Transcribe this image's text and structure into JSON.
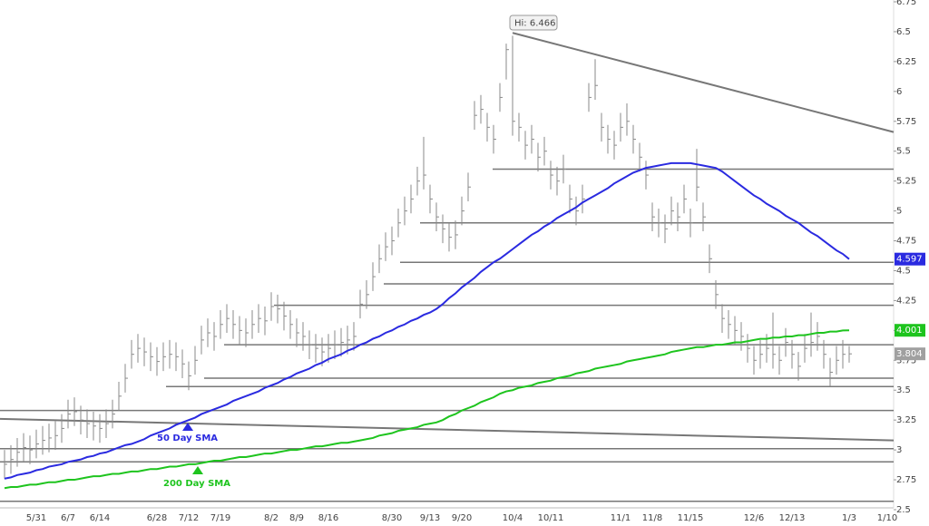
{
  "chart_data": {
    "type": "ohlc",
    "categories": [
      null,
      null,
      null,
      null,
      null,
      "5/31",
      null,
      null,
      null,
      null,
      "6/7",
      null,
      null,
      null,
      null,
      "6/14",
      null,
      null,
      null,
      null,
      null,
      null,
      null,
      null,
      "6/28",
      null,
      null,
      null,
      null,
      "7/12",
      null,
      null,
      null,
      null,
      "7/19",
      null,
      null,
      null,
      null,
      null,
      null,
      null,
      "8/2",
      null,
      null,
      null,
      "8/9",
      null,
      null,
      null,
      null,
      "8/16",
      null,
      null,
      null,
      null,
      null,
      null,
      null,
      null,
      null,
      "8/30",
      null,
      null,
      null,
      null,
      null,
      "9/13",
      null,
      null,
      null,
      null,
      "9/20",
      null,
      null,
      null,
      null,
      null,
      null,
      null,
      "10/4",
      null,
      null,
      null,
      null,
      null,
      "10/11",
      null,
      null,
      null,
      null,
      null,
      null,
      null,
      null,
      null,
      null,
      "11/1",
      null,
      null,
      null,
      null,
      "11/8",
      null,
      null,
      null,
      null,
      null,
      "11/15",
      null,
      null,
      null,
      null,
      null,
      null,
      null,
      null,
      null,
      "12/6",
      null,
      null,
      null,
      null,
      null,
      "12/13",
      null,
      null,
      null,
      null,
      null,
      null,
      null,
      null,
      "1/3",
      null,
      null,
      null,
      null,
      null,
      "1/10"
    ],
    "bars": {
      "color": "#8a8a8a",
      "high": [
        3.0,
        3.04,
        3.1,
        3.14,
        3.12,
        3.17,
        3.2,
        3.22,
        3.24,
        3.3,
        3.42,
        3.44,
        3.37,
        3.34,
        3.32,
        3.3,
        3.34,
        3.42,
        3.57,
        3.72,
        3.92,
        3.97,
        3.94,
        3.9,
        3.86,
        3.9,
        3.92,
        3.9,
        3.84,
        3.74,
        3.87,
        4.04,
        4.1,
        4.07,
        4.17,
        4.22,
        4.17,
        4.12,
        4.1,
        4.17,
        4.22,
        4.2,
        4.32,
        4.3,
        4.24,
        4.17,
        4.1,
        4.07,
        4.0,
        3.97,
        3.94,
        3.97,
        4.0,
        4.02,
        4.04,
        4.07,
        4.34,
        4.42,
        4.57,
        4.72,
        4.82,
        4.87,
        5.02,
        5.12,
        5.22,
        5.37,
        5.62,
        5.22,
        5.07,
        4.97,
        4.9,
        4.92,
        5.12,
        5.32,
        5.92,
        5.97,
        5.82,
        5.72,
        6.07,
        6.4,
        6.466,
        5.82,
        5.67,
        5.72,
        5.57,
        5.62,
        5.42,
        5.37,
        5.47,
        5.22,
        5.12,
        5.22,
        6.07,
        6.27,
        5.82,
        5.72,
        5.67,
        5.82,
        5.9,
        5.72,
        5.57,
        5.42,
        5.07,
        5.02,
        4.97,
        5.12,
        5.07,
        5.22,
        5.02,
        5.52,
        5.07,
        4.72,
        4.42,
        4.22,
        4.17,
        4.12,
        4.07,
        3.97,
        3.87,
        3.92,
        3.97,
        4.15,
        3.87,
        4.02,
        3.92,
        3.82,
        3.97,
        4.15,
        4.07,
        3.92,
        3.77,
        3.87,
        3.92,
        3.87,
        null,
        null,
        null,
        null,
        null,
        null
      ],
      "low": [
        2.76,
        2.8,
        2.86,
        2.9,
        2.88,
        2.93,
        2.96,
        2.98,
        3.0,
        3.06,
        3.18,
        3.2,
        3.13,
        3.1,
        3.08,
        3.06,
        3.1,
        3.18,
        3.33,
        3.48,
        3.68,
        3.73,
        3.7,
        3.66,
        3.62,
        3.66,
        3.68,
        3.66,
        3.6,
        3.5,
        3.63,
        3.8,
        3.86,
        3.83,
        3.93,
        3.98,
        3.93,
        3.88,
        3.86,
        3.93,
        3.98,
        3.96,
        4.08,
        4.06,
        4.0,
        3.93,
        3.86,
        3.83,
        3.76,
        3.73,
        3.7,
        3.73,
        3.76,
        3.78,
        3.8,
        3.83,
        4.1,
        4.18,
        4.33,
        4.48,
        4.58,
        4.63,
        4.78,
        4.88,
        4.98,
        5.13,
        5.18,
        4.98,
        4.83,
        4.73,
        4.66,
        4.68,
        4.88,
        5.08,
        5.68,
        5.73,
        5.58,
        5.48,
        5.83,
        6.1,
        5.63,
        5.58,
        5.43,
        5.48,
        5.33,
        5.38,
        5.18,
        5.13,
        5.23,
        4.98,
        4.88,
        4.98,
        5.83,
        5.93,
        5.58,
        5.48,
        5.43,
        5.58,
        5.63,
        5.48,
        5.33,
        5.18,
        4.83,
        4.78,
        4.73,
        4.88,
        4.83,
        4.98,
        4.78,
        5.08,
        4.83,
        4.48,
        4.18,
        3.98,
        3.93,
        3.88,
        3.83,
        3.73,
        3.63,
        3.68,
        3.73,
        3.68,
        3.63,
        3.78,
        3.68,
        3.58,
        3.73,
        3.78,
        3.83,
        3.68,
        3.53,
        3.63,
        3.68,
        3.73,
        null,
        null,
        null,
        null,
        null,
        null
      ],
      "close": [
        2.88,
        2.92,
        2.98,
        3.02,
        3.0,
        3.05,
        3.08,
        3.1,
        3.12,
        3.18,
        3.3,
        3.32,
        3.25,
        3.22,
        3.2,
        3.18,
        3.22,
        3.3,
        3.45,
        3.6,
        3.8,
        3.85,
        3.82,
        3.78,
        3.74,
        3.78,
        3.8,
        3.78,
        3.72,
        3.62,
        3.75,
        3.92,
        3.98,
        3.95,
        4.05,
        4.1,
        4.05,
        4.0,
        3.98,
        4.05,
        4.1,
        4.08,
        4.2,
        4.18,
        4.12,
        4.05,
        3.98,
        3.95,
        3.88,
        3.85,
        3.82,
        3.85,
        3.88,
        3.9,
        3.92,
        3.95,
        4.22,
        4.3,
        4.45,
        4.6,
        4.7,
        4.75,
        4.9,
        5.0,
        5.1,
        5.25,
        5.3,
        5.1,
        4.95,
        4.85,
        4.78,
        4.8,
        5.0,
        5.2,
        5.8,
        5.85,
        5.7,
        5.6,
        5.95,
        6.35,
        5.75,
        5.7,
        5.55,
        5.6,
        5.45,
        5.5,
        5.3,
        5.25,
        5.35,
        5.1,
        5.0,
        5.1,
        5.95,
        6.05,
        5.7,
        5.6,
        5.55,
        5.7,
        5.75,
        5.6,
        5.45,
        5.3,
        4.95,
        4.9,
        4.85,
        5.0,
        4.95,
        5.1,
        4.9,
        5.2,
        4.95,
        4.6,
        4.3,
        4.1,
        4.05,
        4.0,
        3.95,
        3.85,
        3.75,
        3.8,
        3.85,
        3.8,
        3.75,
        3.9,
        3.8,
        3.7,
        3.85,
        3.9,
        3.95,
        3.8,
        3.65,
        3.75,
        3.8,
        3.804,
        null,
        null,
        null,
        null,
        null,
        null
      ]
    },
    "series": [
      {
        "name": "50 Day SMA",
        "color": "#2a2ae0",
        "values": [
          2.76,
          2.77,
          2.79,
          2.8,
          2.81,
          2.83,
          2.84,
          2.86,
          2.87,
          2.88,
          2.9,
          2.91,
          2.92,
          2.94,
          2.95,
          2.97,
          2.98,
          3.0,
          3.02,
          3.04,
          3.05,
          3.07,
          3.09,
          3.12,
          3.14,
          3.16,
          3.18,
          3.21,
          3.23,
          3.25,
          3.27,
          3.3,
          3.32,
          3.34,
          3.36,
          3.38,
          3.41,
          3.43,
          3.45,
          3.47,
          3.49,
          3.52,
          3.54,
          3.56,
          3.59,
          3.61,
          3.64,
          3.66,
          3.68,
          3.71,
          3.73,
          3.76,
          3.78,
          3.8,
          3.83,
          3.85,
          3.88,
          3.9,
          3.93,
          3.95,
          3.98,
          4.0,
          4.03,
          4.05,
          4.08,
          4.1,
          4.13,
          4.15,
          4.18,
          4.22,
          4.27,
          4.31,
          4.36,
          4.4,
          4.44,
          4.49,
          4.53,
          4.57,
          4.6,
          4.64,
          4.68,
          4.72,
          4.76,
          4.8,
          4.83,
          4.87,
          4.9,
          4.94,
          4.97,
          5.0,
          5.03,
          5.07,
          5.1,
          5.13,
          5.16,
          5.19,
          5.23,
          5.26,
          5.29,
          5.32,
          5.34,
          5.36,
          5.37,
          5.38,
          5.39,
          5.4,
          5.4,
          5.4,
          5.4,
          5.39,
          5.38,
          5.37,
          5.36,
          5.33,
          5.29,
          5.25,
          5.21,
          5.17,
          5.13,
          5.1,
          5.06,
          5.03,
          5.0,
          4.96,
          4.93,
          4.9,
          4.86,
          4.82,
          4.79,
          4.75,
          4.71,
          4.67,
          4.64,
          4.597,
          null,
          null,
          null,
          null,
          null,
          null
        ]
      },
      {
        "name": "200 Day SMA",
        "color": "#1ec41e",
        "values": [
          2.68,
          2.69,
          2.69,
          2.7,
          2.71,
          2.71,
          2.72,
          2.73,
          2.73,
          2.74,
          2.75,
          2.75,
          2.76,
          2.77,
          2.78,
          2.78,
          2.79,
          2.8,
          2.8,
          2.81,
          2.82,
          2.82,
          2.83,
          2.84,
          2.84,
          2.85,
          2.86,
          2.86,
          2.87,
          2.88,
          2.88,
          2.89,
          2.9,
          2.91,
          2.91,
          2.92,
          2.93,
          2.94,
          2.94,
          2.95,
          2.96,
          2.97,
          2.97,
          2.98,
          2.99,
          3.0,
          3.0,
          3.01,
          3.02,
          3.03,
          3.03,
          3.04,
          3.05,
          3.06,
          3.06,
          3.07,
          3.08,
          3.09,
          3.1,
          3.12,
          3.13,
          3.14,
          3.16,
          3.17,
          3.18,
          3.19,
          3.21,
          3.22,
          3.23,
          3.25,
          3.28,
          3.3,
          3.33,
          3.35,
          3.37,
          3.4,
          3.42,
          3.44,
          3.47,
          3.49,
          3.5,
          3.52,
          3.53,
          3.54,
          3.56,
          3.57,
          3.58,
          3.6,
          3.61,
          3.62,
          3.64,
          3.65,
          3.66,
          3.68,
          3.69,
          3.7,
          3.71,
          3.72,
          3.74,
          3.75,
          3.76,
          3.77,
          3.78,
          3.79,
          3.8,
          3.82,
          3.83,
          3.84,
          3.85,
          3.86,
          3.86,
          3.87,
          3.88,
          3.88,
          3.89,
          3.9,
          3.9,
          3.91,
          3.92,
          3.93,
          3.93,
          3.94,
          3.94,
          3.95,
          3.95,
          3.96,
          3.96,
          3.97,
          3.98,
          3.98,
          3.99,
          3.99,
          4.0,
          4.001,
          null,
          null,
          null,
          null,
          null,
          null
        ]
      }
    ],
    "levels": [
      5.35,
      4.9,
      4.57,
      4.39,
      4.21,
      3.88,
      3.6,
      3.53,
      3.33,
      3.01,
      2.9,
      2.57
    ],
    "trendlines": [
      [
        6.49,
        5.66
      ],
      [
        3.26,
        3.08
      ]
    ],
    "line_color": "#777777",
    "annotation": "Hi: 6.466",
    "ylim": [
      2.5,
      6.75
    ],
    "yticks": [
      2.5,
      2.75,
      3,
      3.25,
      3.5,
      3.75,
      4,
      4.25,
      4.5,
      4.75,
      5,
      5.25,
      5.5,
      5.75,
      6,
      6.25,
      6.5,
      6.75
    ]
  }
}
